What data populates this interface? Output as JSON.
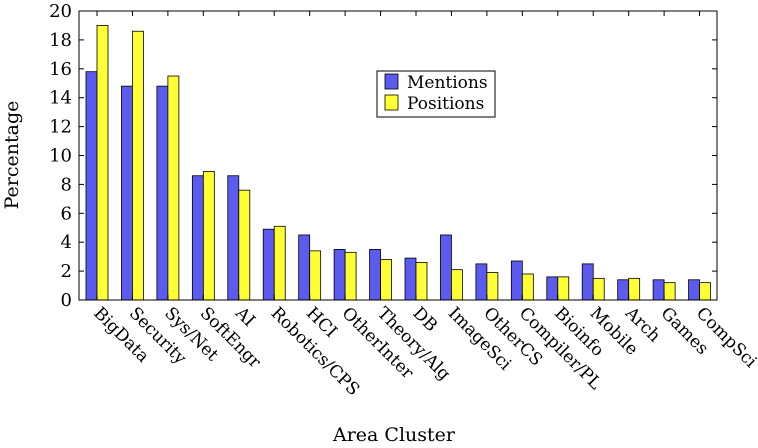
{
  "chart_data": {
    "type": "bar",
    "ylabel": "Percentage",
    "xlabel": "Area Cluster",
    "ylim": [
      0,
      20
    ],
    "yticks": [
      0,
      2,
      4,
      6,
      8,
      10,
      12,
      14,
      16,
      18,
      20
    ],
    "grid": false,
    "legend_position": "top-center",
    "categories": [
      "BigData",
      "Security",
      "Sys/Net",
      "SoftEngr",
      "AI",
      "Robotics/CPS",
      "HCI",
      "OtherInter",
      "Theory/Alg",
      "DB",
      "ImageSci",
      "OtherCS",
      "Compiler/PL",
      "Bioinfo",
      "Mobile",
      "Arch",
      "Games",
      "CompSci"
    ],
    "series": [
      {
        "name": "Mentions",
        "color": "#5b5bf0",
        "values": [
          15.8,
          14.8,
          14.8,
          8.6,
          8.6,
          4.9,
          4.5,
          3.5,
          3.5,
          2.9,
          4.5,
          2.5,
          2.7,
          1.6,
          2.5,
          1.4,
          1.4,
          1.4
        ]
      },
      {
        "name": "Positions",
        "color": "#ffff33",
        "values": [
          19.0,
          18.6,
          15.5,
          8.9,
          7.6,
          5.1,
          3.4,
          3.3,
          2.8,
          2.6,
          2.1,
          1.9,
          1.8,
          1.6,
          1.5,
          1.5,
          1.2,
          1.2
        ]
      }
    ]
  }
}
